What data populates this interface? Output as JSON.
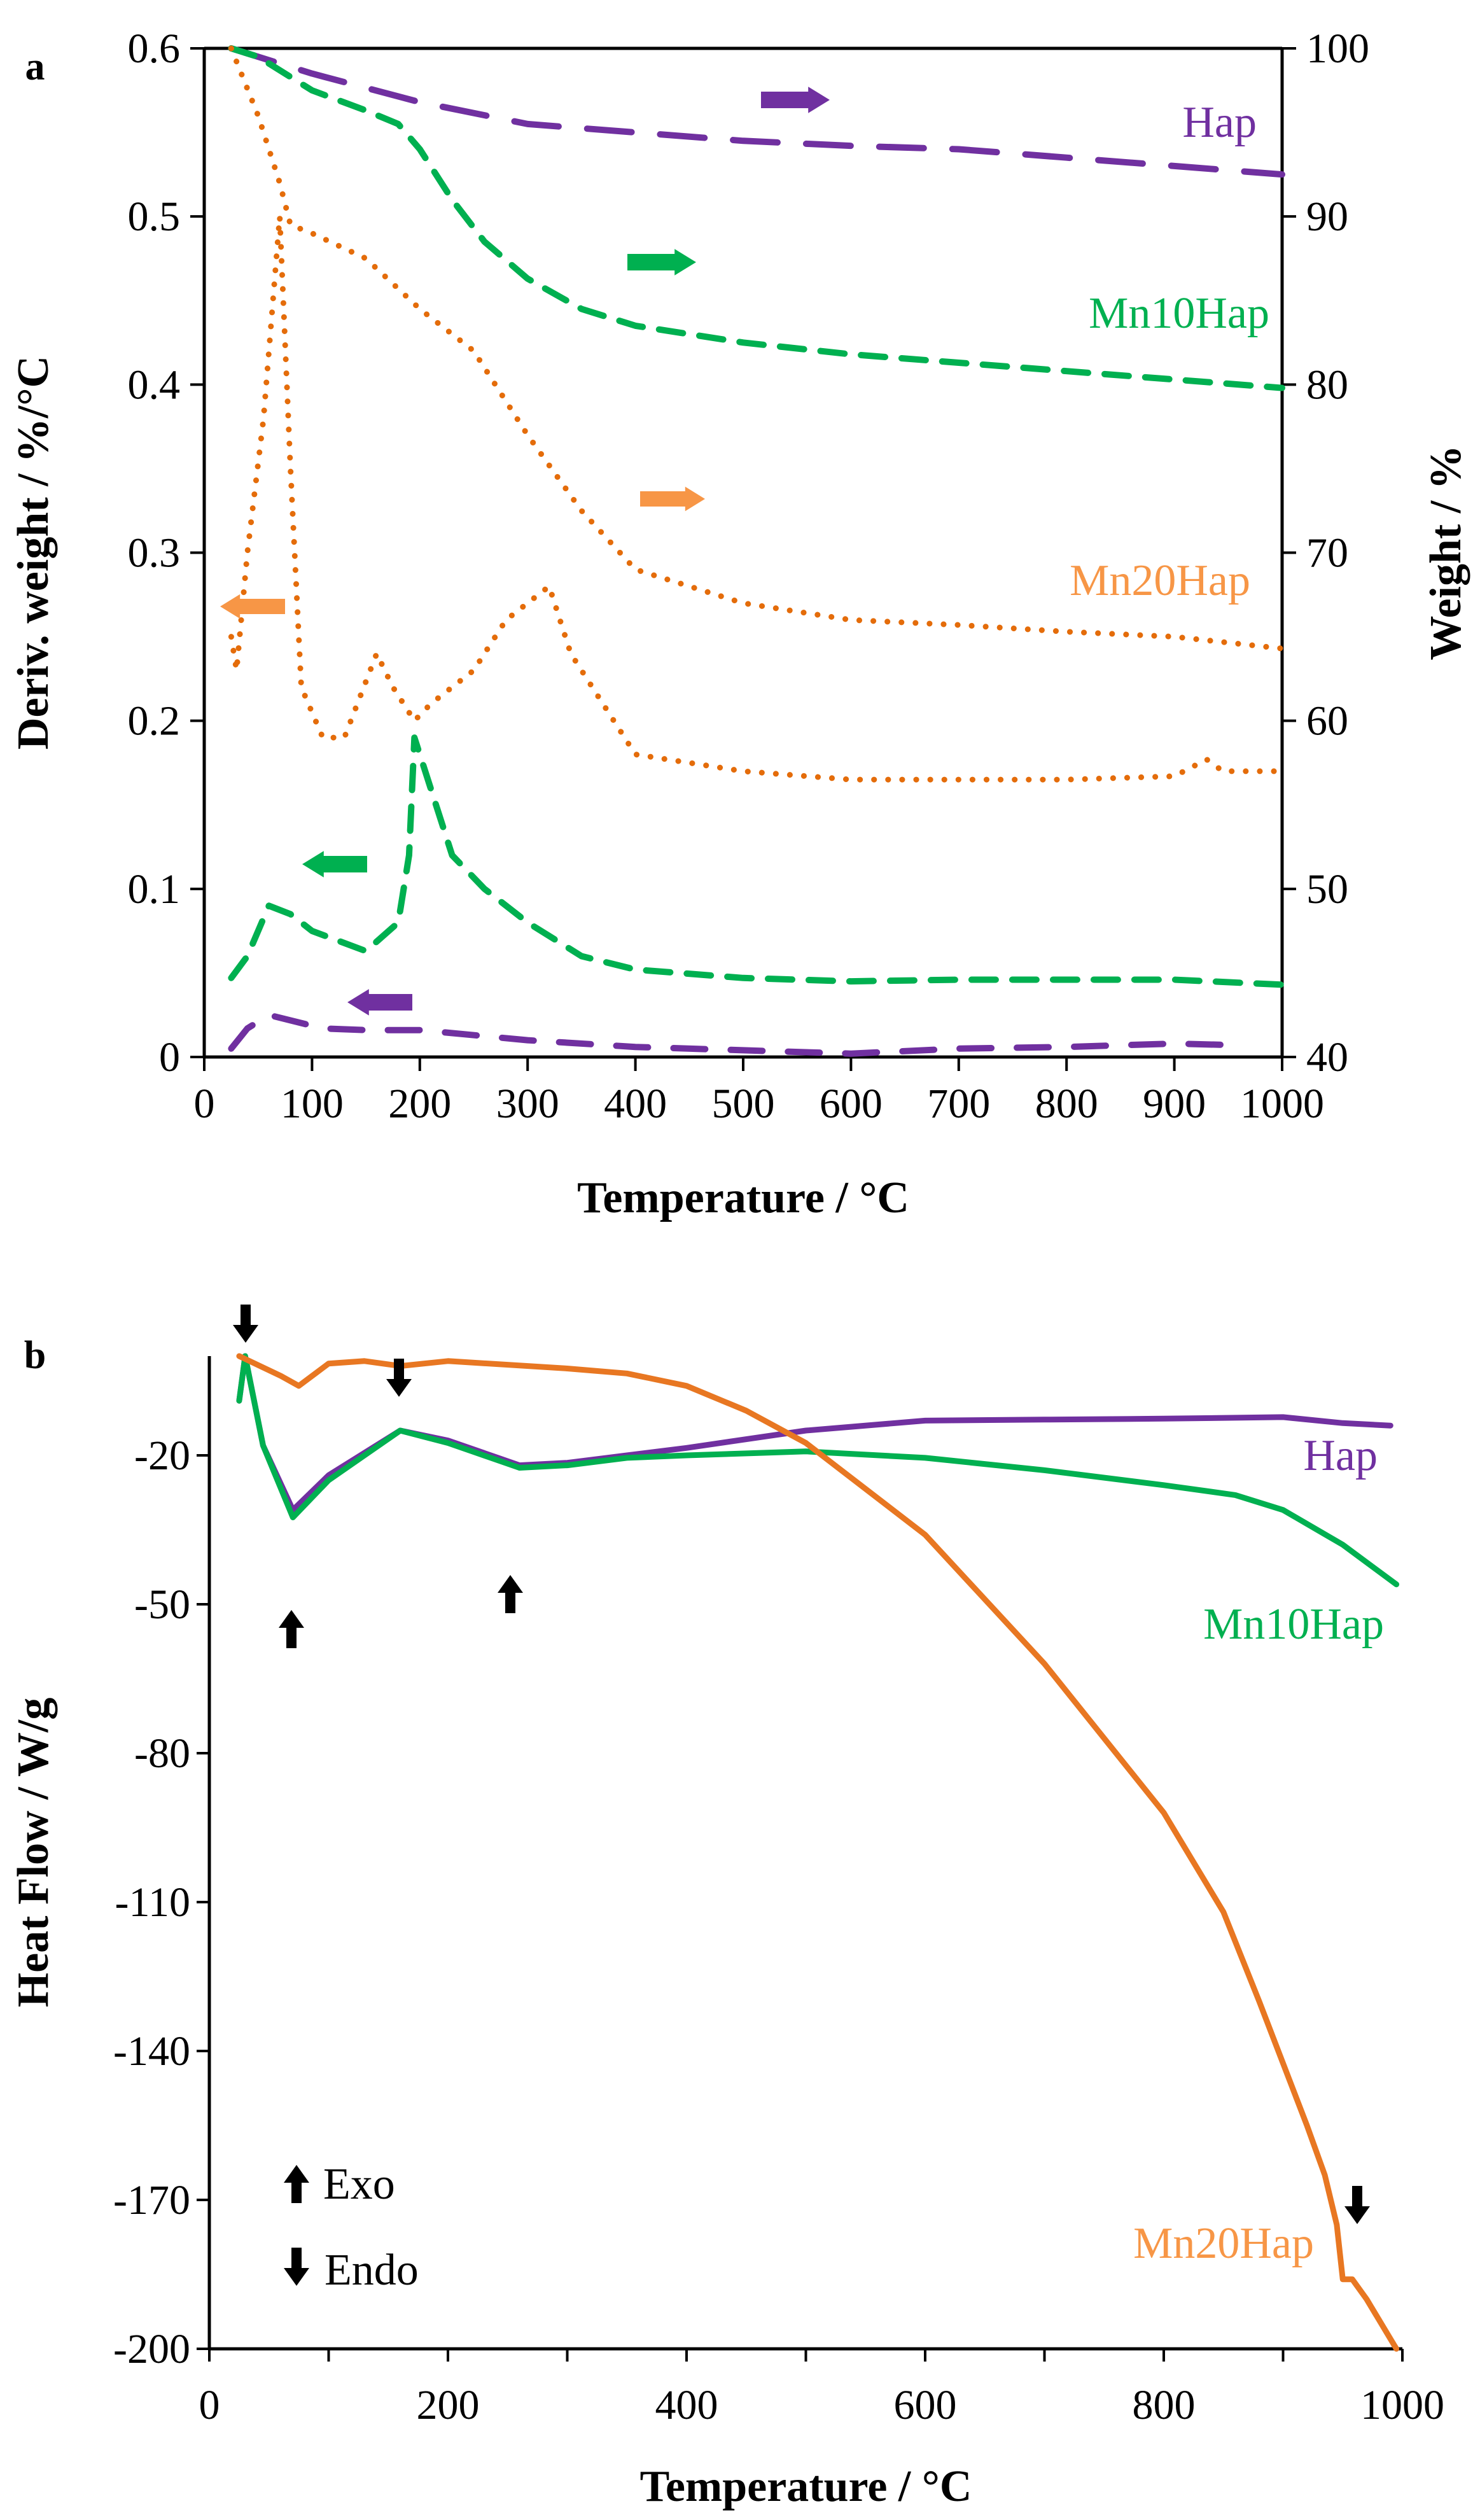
{
  "chart_data": [
    {
      "panel_label": "a",
      "type": "line",
      "xlabel": "Temperature / °C",
      "ylabel": "Deriv. weight / %/°C",
      "y2label": "Weight / %",
      "xlim": [
        0,
        1000
      ],
      "ylim": [
        0,
        0.6
      ],
      "y2lim": [
        40,
        100
      ],
      "xticks": [
        "0",
        "100",
        "200",
        "300",
        "400",
        "500",
        "600",
        "700",
        "800",
        "900",
        "1000"
      ],
      "yticks": [
        "0",
        "0.1",
        "0.2",
        "0.3",
        "0.4",
        "0.5",
        "0.6"
      ],
      "y2ticks": [
        "40",
        "50",
        "60",
        "70",
        "80",
        "90",
        "100"
      ],
      "colors": {
        "Hap": "#7030a0",
        "Mn10Hap": "#00b050",
        "Mn20Hap": "#e46c0a",
        "Mn20Hap_label": "#f79646"
      },
      "series": [
        {
          "name": "Hap",
          "axis": "right",
          "kind": "weight",
          "x": [
            25,
            100,
            200,
            300,
            400,
            500,
            600,
            700,
            800,
            900,
            1000
          ],
          "y": [
            100,
            98.5,
            96.8,
            95.5,
            95,
            94.5,
            94.2,
            94,
            93.5,
            93,
            92.5
          ]
        },
        {
          "name": "Mn10Hap",
          "axis": "right",
          "kind": "weight",
          "x": [
            25,
            50,
            100,
            150,
            180,
            200,
            230,
            260,
            300,
            350,
            400,
            500,
            600,
            700,
            800,
            900,
            1000
          ],
          "y": [
            100,
            99.5,
            97.5,
            96.3,
            95.5,
            94,
            91,
            88.5,
            86.3,
            84.5,
            83.5,
            82.5,
            81.8,
            81.3,
            80.8,
            80.3,
            79.8
          ]
        },
        {
          "name": "Mn20Hap",
          "axis": "right",
          "kind": "weight",
          "x": [
            25,
            50,
            70,
            80,
            100,
            150,
            200,
            250,
            300,
            350,
            400,
            450,
            500,
            600,
            700,
            800,
            900,
            1000
          ],
          "y": [
            100,
            96,
            92,
            89.5,
            89,
            87.5,
            84.5,
            82,
            77,
            72.5,
            69,
            68,
            67,
            66,
            65.7,
            65.3,
            65,
            64.3
          ]
        },
        {
          "name": "Hap",
          "axis": "left",
          "kind": "deriv",
          "x": [
            25,
            40,
            60,
            110,
            150,
            200,
            300,
            400,
            500,
            600,
            700,
            800,
            900,
            960
          ],
          "y": [
            0.005,
            0.017,
            0.025,
            0.017,
            0.016,
            0.016,
            0.01,
            0.006,
            0.004,
            0.002,
            0.005,
            0.006,
            0.008,
            0.007
          ]
        },
        {
          "name": "Mn10Hap",
          "axis": "left",
          "kind": "deriv",
          "x": [
            25,
            40,
            60,
            80,
            100,
            150,
            180,
            190,
            195,
            210,
            230,
            260,
            300,
            350,
            400,
            500,
            600,
            700,
            800,
            900,
            1000
          ],
          "y": [
            0.047,
            0.06,
            0.09,
            0.085,
            0.075,
            0.063,
            0.08,
            0.12,
            0.19,
            0.16,
            0.12,
            0.1,
            0.08,
            0.06,
            0.052,
            0.047,
            0.045,
            0.046,
            0.046,
            0.046,
            0.043
          ]
        },
        {
          "name": "Mn20Hap",
          "axis": "left",
          "kind": "deriv",
          "x": [
            25,
            30,
            40,
            55,
            70,
            80,
            90,
            110,
            130,
            160,
            175,
            195,
            210,
            250,
            280,
            320,
            340,
            380,
            400,
            500,
            600,
            700,
            800,
            900,
            930,
            945,
            1000
          ],
          "y": [
            0.25,
            0.23,
            0.3,
            0.38,
            0.5,
            0.35,
            0.22,
            0.19,
            0.19,
            0.24,
            0.22,
            0.2,
            0.21,
            0.23,
            0.26,
            0.28,
            0.24,
            0.2,
            0.18,
            0.17,
            0.165,
            0.165,
            0.165,
            0.167,
            0.177,
            0.17,
            0.17
          ]
        }
      ],
      "legend": [
        "Hap",
        "Mn10Hap",
        "Mn20Hap"
      ]
    },
    {
      "panel_label": "b",
      "type": "line",
      "xlabel": "Temperature / °C",
      "ylabel": "Heat Flow / W/g",
      "xlim": [
        0,
        1000
      ],
      "ylim": [
        -200,
        0
      ],
      "xticks": [
        "0",
        "200",
        "400",
        "600",
        "800",
        "1000"
      ],
      "yticks": [
        "-20",
        "-50",
        "-80",
        "-110",
        "-140",
        "-170",
        "-200"
      ],
      "colors": {
        "Hap": "#7030a0",
        "Mn10Hap": "#00b050",
        "Mn20Hap": "#e87722",
        "Mn20Hap_label": "#f79646"
      },
      "series": [
        {
          "name": "Hap",
          "x": [
            25,
            30,
            45,
            70,
            100,
            160,
            200,
            260,
            300,
            350,
            400,
            500,
            600,
            700,
            800,
            900,
            950,
            990
          ],
          "y": [
            -9,
            0,
            -18,
            -31,
            -24,
            -15,
            -17,
            -22,
            -21.5,
            -20,
            -18.5,
            -15,
            -13,
            -12.8,
            -12.6,
            -12.3,
            -13.5,
            -14
          ]
        },
        {
          "name": "Mn10Hap",
          "x": [
            25,
            30,
            45,
            70,
            100,
            160,
            200,
            260,
            300,
            350,
            400,
            500,
            600,
            700,
            800,
            860,
            900,
            950,
            995
          ],
          "y": [
            -9,
            0,
            -18,
            -32.5,
            -25,
            -15,
            -17.5,
            -22.5,
            -22,
            -20.5,
            -20,
            -19.2,
            -20.5,
            -23,
            -26,
            -28,
            -31,
            -38,
            -46
          ]
        },
        {
          "name": "Mn20Hap",
          "x": [
            25,
            60,
            75,
            100,
            130,
            160,
            200,
            300,
            350,
            400,
            450,
            500,
            600,
            700,
            800,
            850,
            880,
            920,
            935,
            945,
            950,
            958,
            970,
            995
          ],
          "y": [
            0,
            -4,
            -6,
            -1.5,
            -1,
            -2,
            -1,
            -2.5,
            -3.5,
            -6,
            -11,
            -17.5,
            -36,
            -62,
            -92,
            -112,
            -130,
            -155,
            -165,
            -175,
            -186,
            -186,
            -190,
            -200
          ]
        }
      ],
      "legend": [
        "Hap",
        "Mn10Hap",
        "Mn20Hap"
      ],
      "annotations": {
        "exo": "Exo",
        "endo": "Endo"
      }
    }
  ]
}
